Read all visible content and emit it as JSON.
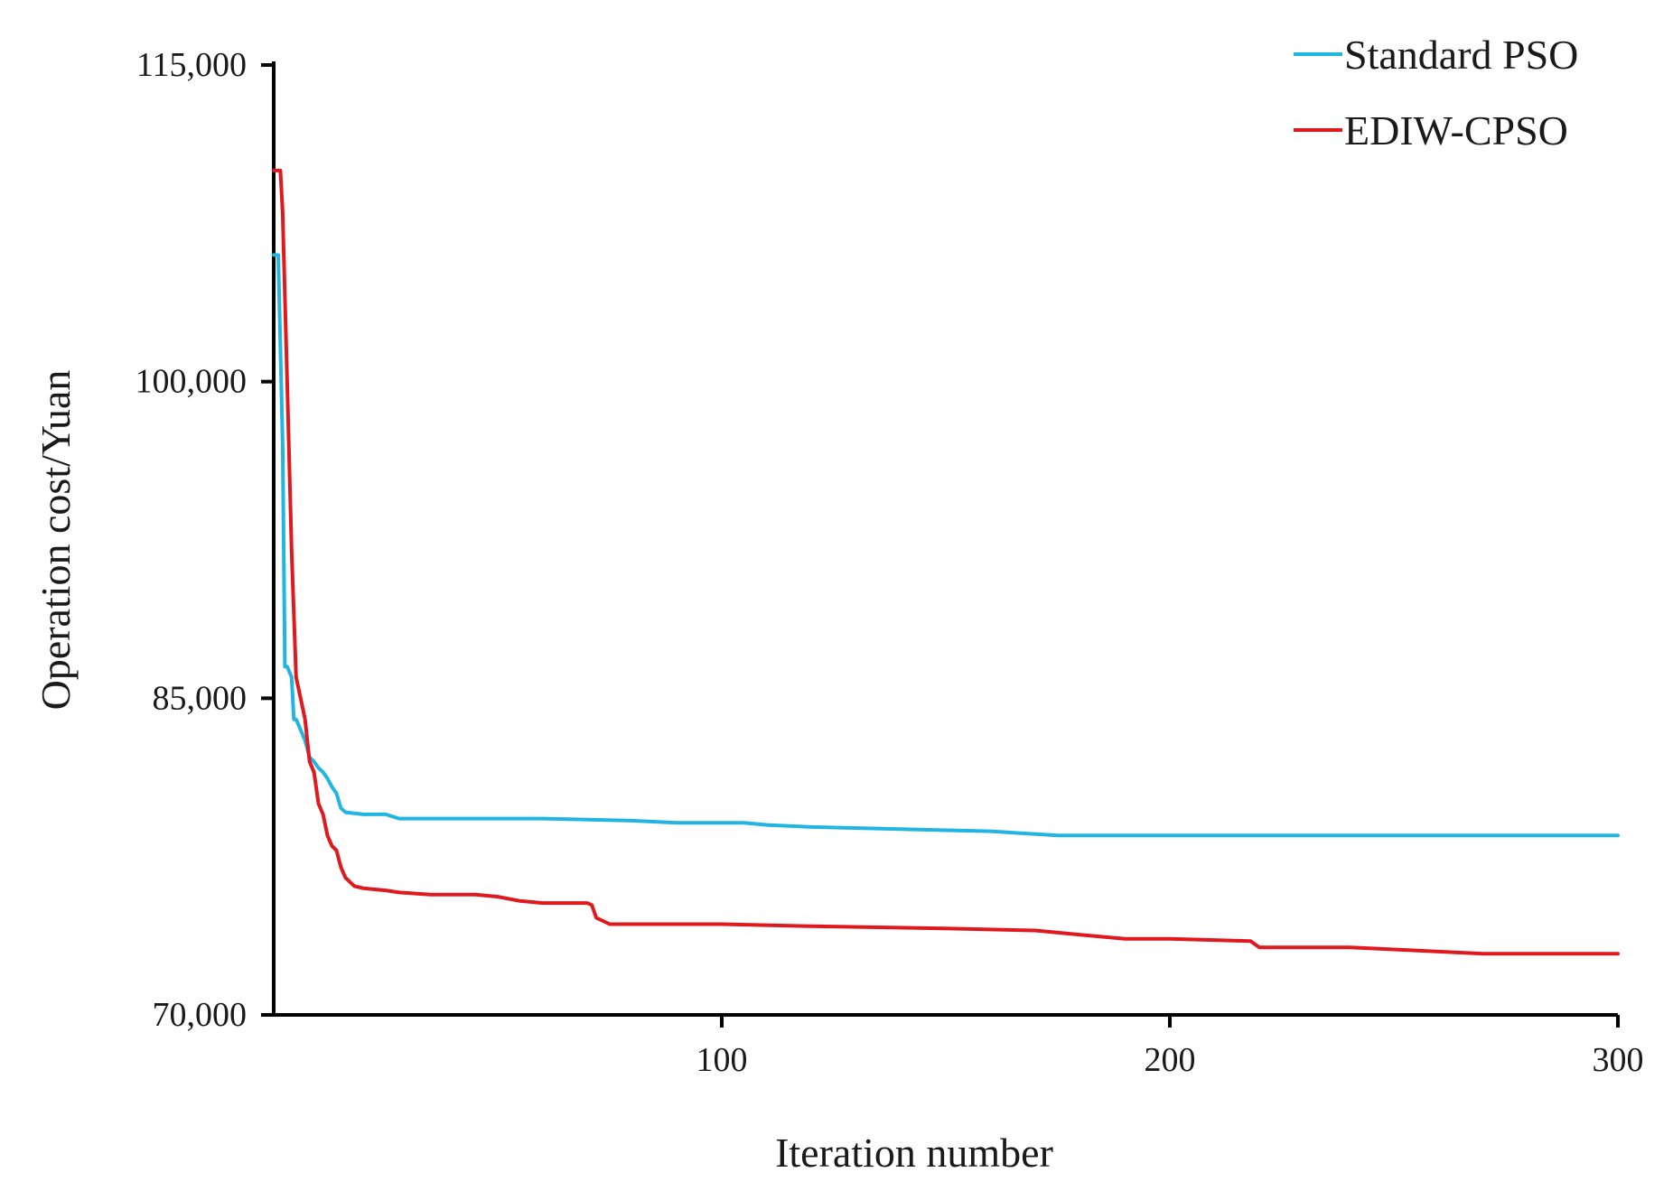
{
  "chart_data": {
    "type": "line",
    "title": "",
    "xlabel": "Iteration number",
    "ylabel": "Operation cost/Yuan",
    "xlim": [
      0,
      300
    ],
    "ylim": [
      70000,
      115000
    ],
    "x_ticks": [
      100,
      200,
      300
    ],
    "x_tick_labels": [
      "100",
      "200",
      "300"
    ],
    "y_ticks": [
      70000,
      85000,
      100000,
      115000
    ],
    "y_tick_labels": [
      "70,000",
      "85,000",
      "100,000",
      "115,000"
    ],
    "grid": false,
    "legend_position": "top-right",
    "series": [
      {
        "name": "Standard PSO",
        "color": "#22b5e3",
        "points": [
          [
            0,
            106000
          ],
          [
            1,
            106000
          ],
          [
            2,
            97000
          ],
          [
            2.5,
            86500
          ],
          [
            3,
            86500
          ],
          [
            4,
            86000
          ],
          [
            4.5,
            84000
          ],
          [
            5,
            84000
          ],
          [
            6,
            83500
          ],
          [
            7,
            83000
          ],
          [
            8,
            82200
          ],
          [
            9,
            82000
          ],
          [
            10,
            81700
          ],
          [
            11,
            81500
          ],
          [
            12,
            81200
          ],
          [
            13,
            80800
          ],
          [
            14,
            80500
          ],
          [
            15,
            79800
          ],
          [
            16,
            79600
          ],
          [
            20,
            79500
          ],
          [
            25,
            79500
          ],
          [
            28,
            79300
          ],
          [
            40,
            79300
          ],
          [
            60,
            79300
          ],
          [
            80,
            79200
          ],
          [
            90,
            79100
          ],
          [
            105,
            79100
          ],
          [
            110,
            79000
          ],
          [
            120,
            78900
          ],
          [
            140,
            78800
          ],
          [
            160,
            78700
          ],
          [
            175,
            78500
          ],
          [
            200,
            78500
          ],
          [
            250,
            78500
          ],
          [
            280,
            78500
          ],
          [
            300,
            78500
          ]
        ]
      },
      {
        "name": "EDIW-CPSO",
        "color": "#e0191f",
        "points": [
          [
            0,
            110000
          ],
          [
            1,
            110000
          ],
          [
            1.5,
            110000
          ],
          [
            2,
            108000
          ],
          [
            3,
            100000
          ],
          [
            4,
            92000
          ],
          [
            5,
            86000
          ],
          [
            6,
            85000
          ],
          [
            7,
            84000
          ],
          [
            8,
            82000
          ],
          [
            9,
            81500
          ],
          [
            10,
            80000
          ],
          [
            11,
            79500
          ],
          [
            12,
            78500
          ],
          [
            13,
            78000
          ],
          [
            14,
            77800
          ],
          [
            15,
            77000
          ],
          [
            16,
            76500
          ],
          [
            17,
            76300
          ],
          [
            18,
            76100
          ],
          [
            20,
            76000
          ],
          [
            25,
            75900
          ],
          [
            28,
            75800
          ],
          [
            35,
            75700
          ],
          [
            45,
            75700
          ],
          [
            50,
            75600
          ],
          [
            55,
            75400
          ],
          [
            60,
            75300
          ],
          [
            70,
            75300
          ],
          [
            71,
            75200
          ],
          [
            72,
            74600
          ],
          [
            75,
            74300
          ],
          [
            80,
            74300
          ],
          [
            100,
            74300
          ],
          [
            120,
            74200
          ],
          [
            150,
            74100
          ],
          [
            170,
            74000
          ],
          [
            180,
            73800
          ],
          [
            190,
            73600
          ],
          [
            200,
            73600
          ],
          [
            218,
            73500
          ],
          [
            220,
            73200
          ],
          [
            240,
            73200
          ],
          [
            250,
            73100
          ],
          [
            270,
            72900
          ],
          [
            280,
            72900
          ],
          [
            300,
            72900
          ]
        ]
      }
    ]
  }
}
